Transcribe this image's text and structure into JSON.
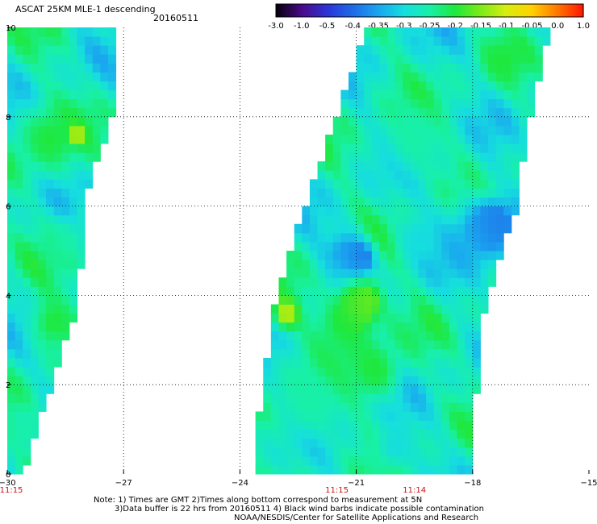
{
  "header": {
    "title": "ASCAT 25KM MLE-1 descending",
    "date": "20160511"
  },
  "footer": {
    "note_line1": "Note: 1) Times are GMT 2)Times along bottom correspond to measurement at 5N",
    "note_line2": "3)Data buffer is 22 hrs from 20160511 4) Black wind barbs indicate possible contamination",
    "note_line3": "NOAA/NESDIS/Center for Satellite Applications and Research"
  },
  "chart_data": {
    "type": "heatmap",
    "title": "ASCAT 25KM MLE-1 descending",
    "colorbar": {
      "ticks": [
        "-3.0",
        "-1.0",
        "-0.5",
        "-0.4",
        "-0.35",
        "-0.3",
        "-0.25",
        "-0.2",
        "-0.15",
        "-0.1",
        "-0.05",
        "0.0",
        "1.0"
      ],
      "colors": [
        "#0a0010",
        "#4a0a8c",
        "#2a36d8",
        "#1f6ce8",
        "#1aa6f0",
        "#16dede",
        "#18f0a8",
        "#1ee83e",
        "#7cea18",
        "#d6ee10",
        "#ffd200",
        "#ff7a00",
        "#ff1a00"
      ]
    },
    "x_ticks": [
      -30,
      -27,
      -24,
      -21,
      -18,
      -15
    ],
    "x_tick_labels": [
      "−30",
      "−27",
      "−24",
      "−21",
      "−18",
      "−15"
    ],
    "y_ticks": [
      0,
      2,
      4,
      6,
      8,
      10
    ],
    "y_tick_labels": [
      "0",
      "2",
      "4",
      "6",
      "8",
      "10"
    ],
    "xlim": [
      -30,
      -15
    ],
    "ylim": [
      0,
      10
    ],
    "grid": true,
    "pass_times": [
      {
        "x": -30,
        "label": "11:15"
      },
      {
        "x": -21.5,
        "label": "11:15"
      },
      {
        "x": -19.5,
        "label": "11:14"
      }
    ],
    "time_color": "#cc1111",
    "swaths": [
      {
        "name": "west-swath",
        "polygon": [
          [
            -30,
            0
          ],
          [
            -29.6,
            0
          ],
          [
            -28.2,
            3.7
          ],
          [
            -27.9,
            6.4
          ],
          [
            -27.3,
            8
          ],
          [
            -27.3,
            10
          ],
          [
            -30,
            10
          ]
        ]
      },
      {
        "name": "east-swath",
        "polygon": [
          [
            -23.7,
            0
          ],
          [
            -18.1,
            0
          ],
          [
            -17.7,
            3.7
          ],
          [
            -16.9,
            5.9
          ],
          [
            -16.6,
            7.7
          ],
          [
            -16.3,
            8.9
          ],
          [
            -16.0,
            10
          ],
          [
            -20.7,
            10
          ],
          [
            -21.6,
            7.8
          ],
          [
            -22.4,
            5.8
          ],
          [
            -23.1,
            3.9
          ],
          [
            -23.4,
            2.0
          ]
        ]
      }
    ],
    "features": [
      {
        "x": -20.9,
        "y": 4.8,
        "r": 0.45,
        "value": "-0.4"
      },
      {
        "x": -21.3,
        "y": 4.95,
        "r": 0.75,
        "value": "-0.35"
      },
      {
        "x": -17.8,
        "y": 5.4,
        "r": 1.1,
        "value": "-0.35"
      },
      {
        "x": -17.4,
        "y": 5.6,
        "r": 0.55,
        "value": "-0.4"
      },
      {
        "x": -19.4,
        "y": 5.3,
        "r": 0.6,
        "value": "-0.3"
      },
      {
        "x": -17.2,
        "y": 3.3,
        "r": 0.25,
        "value": "-1.0"
      },
      {
        "x": -21.3,
        "y": 3.4,
        "r": 1.0,
        "value": "-0.2"
      },
      {
        "x": -20.8,
        "y": 3.9,
        "r": 0.6,
        "value": "-0.15"
      },
      {
        "x": -22.8,
        "y": 3.6,
        "r": 0.4,
        "value": "-0.1"
      },
      {
        "x": -19.5,
        "y": 7.5,
        "r": 1.1,
        "value": "-0.25"
      },
      {
        "x": -17.2,
        "y": 9.3,
        "r": 0.6,
        "value": "-0.2"
      },
      {
        "x": -22.2,
        "y": 1.6,
        "r": 1.2,
        "value": "-0.25"
      },
      {
        "x": -20.5,
        "y": 2.3,
        "r": 0.8,
        "value": "-0.2"
      },
      {
        "x": -20.0,
        "y": 0.6,
        "r": 0.7,
        "value": "-0.3"
      },
      {
        "x": -28.9,
        "y": 7.5,
        "r": 1.0,
        "value": "-0.2"
      },
      {
        "x": -28.8,
        "y": 3.4,
        "r": 0.8,
        "value": "-0.2"
      },
      {
        "x": -28.5,
        "y": 5.2,
        "r": 0.6,
        "value": "-0.25"
      },
      {
        "x": -28.2,
        "y": 7.6,
        "r": 0.2,
        "value": "-0.05"
      },
      {
        "x": -29.5,
        "y": 1.0,
        "r": 0.5,
        "value": "-0.25"
      }
    ]
  }
}
